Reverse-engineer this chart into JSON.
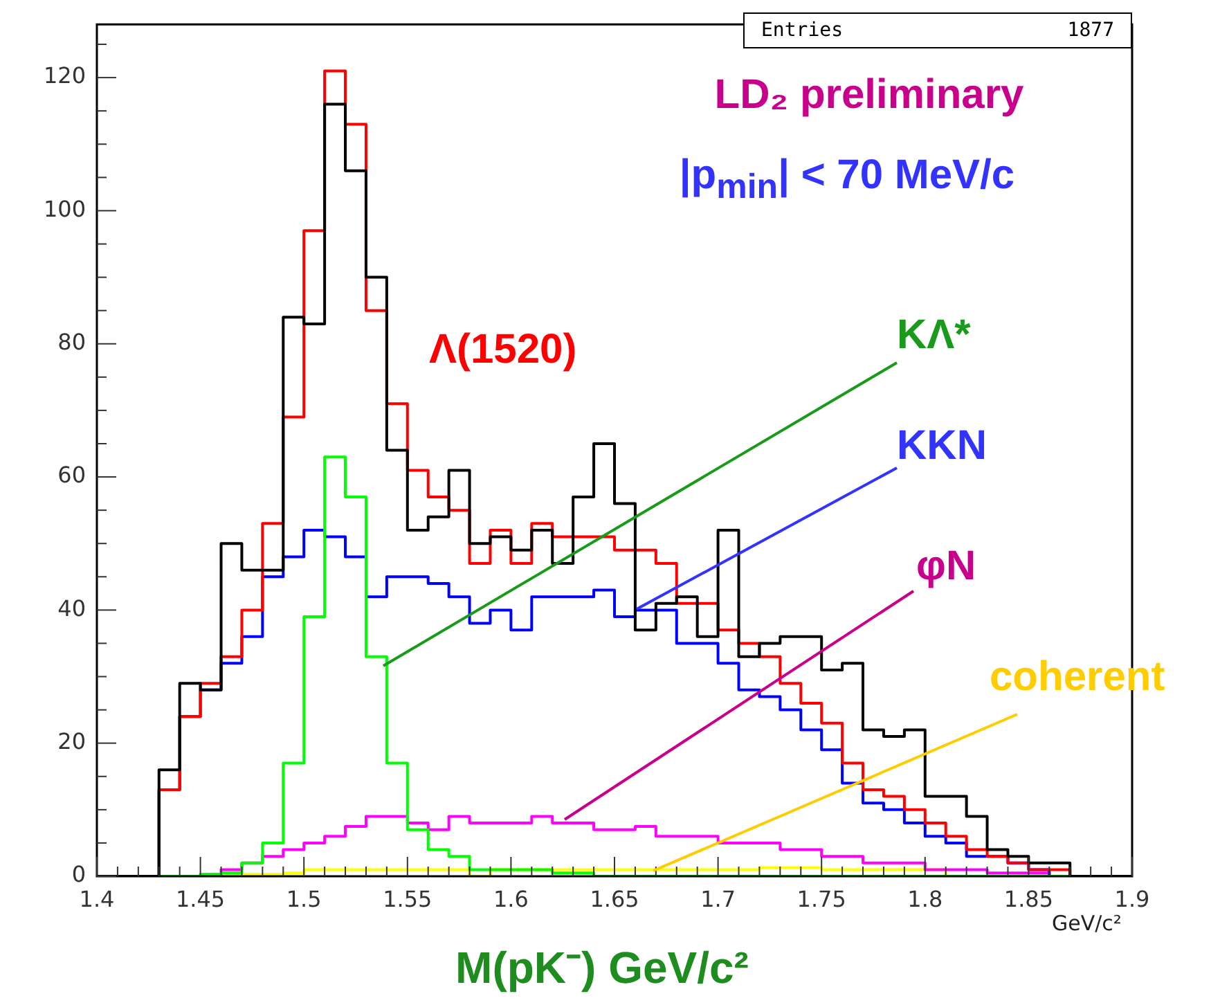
{
  "chart_data": {
    "type": "histogram",
    "title": "LD₂ preliminary",
    "subtitle": "|p$_{min}$| < 70 MeV/c",
    "xlabel": "M(pK⁻) GeV/c²",
    "bins": [
      1.4,
      1.41,
      1.42,
      1.43,
      1.44,
      1.45,
      1.46,
      1.47,
      1.48,
      1.49,
      1.5,
      1.51,
      1.52,
      1.53,
      1.54,
      1.55,
      1.56,
      1.57,
      1.58,
      1.59,
      1.6,
      1.61,
      1.62,
      1.63,
      1.64,
      1.65,
      1.66,
      1.67,
      1.68,
      1.69,
      1.7,
      1.71,
      1.72,
      1.73,
      1.74,
      1.75,
      1.76,
      1.77,
      1.78,
      1.79,
      1.8,
      1.81,
      1.82,
      1.83,
      1.84,
      1.85,
      1.86,
      1.87,
      1.88,
      1.89,
      1.9
    ],
    "series": [
      {
        "color": "#000000",
        "values": [
          0,
          0,
          0,
          16,
          29,
          28,
          50,
          46,
          46,
          84,
          83,
          116,
          106,
          90,
          64,
          52,
          54,
          61,
          50,
          51,
          49,
          52,
          47,
          57,
          65,
          56,
          37,
          41,
          42,
          36,
          52,
          33,
          35,
          36,
          36,
          31,
          32,
          22,
          21,
          22,
          12,
          12,
          9,
          4,
          3,
          2,
          2,
          0,
          0,
          0
        ]
      },
      {
        "color": "#ff0000",
        "values": [
          0,
          0,
          0,
          13,
          24,
          29,
          33,
          40,
          53,
          69,
          97,
          121,
          113,
          85,
          71,
          61,
          57,
          55,
          47,
          52,
          47,
          53,
          51,
          51,
          51,
          49,
          49,
          47,
          41,
          41,
          37,
          35,
          33,
          29,
          26,
          23,
          17,
          13,
          12,
          10,
          8,
          6,
          4,
          3,
          2,
          1,
          1,
          0,
          0,
          0
        ]
      },
      {
        "name": "KΛ*",
        "color": "#00ff00",
        "values": [
          0,
          0,
          0,
          0,
          0,
          0.3,
          0.5,
          2,
          5,
          17,
          39,
          63,
          57,
          33,
          17,
          7,
          4,
          3,
          1,
          1,
          1,
          1,
          0.5,
          0.5,
          0,
          0,
          0,
          0,
          0,
          0,
          0,
          0,
          0,
          0,
          0,
          0,
          0,
          0,
          0,
          0,
          0,
          0,
          0,
          0,
          0,
          0,
          0,
          0,
          0,
          0
        ]
      },
      {
        "name": "KKN",
        "color": "#0000ff",
        "values": [
          0,
          0,
          0,
          13,
          24,
          28,
          32,
          36,
          45,
          48,
          52,
          51,
          48,
          42,
          45,
          45,
          44,
          42,
          38,
          40,
          37,
          42,
          42,
          42,
          43,
          39,
          40,
          40,
          35,
          35,
          32,
          28,
          27,
          25,
          22,
          19,
          14,
          11,
          10,
          8,
          6,
          5,
          3,
          3,
          2,
          1,
          0,
          0,
          0,
          0
        ]
      },
      {
        "name": "φN",
        "color": "#ff00ff",
        "values": [
          0,
          0,
          0,
          0,
          0,
          0,
          1,
          2,
          3,
          4,
          5,
          6,
          7.5,
          9,
          9,
          8,
          7,
          9,
          8,
          8,
          8,
          9,
          8,
          8,
          7,
          7,
          7.5,
          6,
          6,
          6,
          5,
          5,
          5,
          4,
          4,
          3,
          3,
          2,
          2,
          2,
          1,
          1,
          1,
          0.5,
          0.5,
          0.5,
          0,
          0,
          0,
          0
        ]
      },
      {
        "name": "coherent",
        "color": "#ffff00",
        "values": [
          0,
          0,
          0,
          0,
          0,
          0.3,
          0.3,
          0.3,
          0.3,
          0.5,
          1,
          1,
          1,
          1,
          1,
          1,
          1,
          1,
          0,
          1,
          1,
          1,
          1,
          1,
          1,
          1,
          1,
          1,
          1,
          1,
          1,
          1,
          1.3,
          1.3,
          1.3,
          1,
          1,
          1,
          1,
          1,
          1,
          0,
          0,
          0,
          0,
          0,
          0,
          0,
          0,
          0
        ]
      }
    ],
    "xlim": [
      1.4,
      1.9
    ],
    "xticks": [
      1.4,
      {
        "value": 1.41,
        "label": null
      },
      {
        "value": 1.42,
        "label": null
      },
      {
        "value": 1.43,
        "label": null
      },
      {
        "value": 1.44,
        "label": null
      },
      1.45,
      {
        "value": 1.46,
        "label": null
      },
      {
        "value": 1.47,
        "label": null
      },
      {
        "value": 1.48,
        "label": null
      },
      {
        "value": 1.49,
        "label": null
      },
      1.5,
      {
        "value": 1.51,
        "label": null
      },
      {
        "value": 1.52,
        "label": null
      },
      {
        "value": 1.53,
        "label": null
      },
      {
        "value": 1.54,
        "label": null
      },
      1.55,
      {
        "value": 1.56,
        "label": null
      },
      {
        "value": 1.57,
        "label": null
      },
      {
        "value": 1.58,
        "label": null
      },
      {
        "value": 1.59,
        "label": null
      },
      1.6,
      {
        "value": 1.61,
        "label": null
      },
      {
        "value": 1.62,
        "label": null
      },
      {
        "value": 1.63,
        "label": null
      },
      {
        "value": 1.64,
        "label": null
      },
      1.65,
      {
        "value": 1.66,
        "label": null
      },
      {
        "value": 1.67,
        "label": null
      },
      {
        "value": 1.68,
        "label": null
      },
      {
        "value": 1.69,
        "label": null
      },
      1.7,
      {
        "value": 1.71,
        "label": null
      },
      {
        "value": 1.72,
        "label": null
      },
      {
        "value": 1.73,
        "label": null
      },
      {
        "value": 1.74,
        "label": null
      },
      1.75,
      {
        "value": 1.76,
        "label": null
      },
      {
        "value": 1.77,
        "label": null
      },
      {
        "value": 1.78,
        "label": null
      },
      {
        "value": 1.79,
        "label": null
      },
      1.8,
      {
        "value": 1.81,
        "label": null
      },
      {
        "value": 1.82,
        "label": null
      },
      {
        "value": 1.83,
        "label": null
      },
      {
        "value": 1.84,
        "label": null
      },
      1.85,
      {
        "value": 1.86,
        "label": null
      },
      {
        "value": 1.87,
        "label": null
      },
      {
        "value": 1.88,
        "label": null
      },
      {
        "value": 1.89,
        "label": null
      },
      1.9
    ],
    "ylim": [
      0,
      128
    ],
    "yticks": [
      0,
      {
        "value": 5,
        "label": null
      },
      {
        "value": 10,
        "label": null
      },
      {
        "value": 15,
        "label": null
      },
      20,
      {
        "value": 25,
        "label": null
      },
      {
        "value": 30,
        "label": null
      },
      {
        "value": 35,
        "label": null
      },
      40,
      {
        "value": 45,
        "label": null
      },
      {
        "value": 50,
        "label": null
      },
      {
        "value": 55,
        "label": null
      },
      60,
      {
        "value": 65,
        "label": null
      },
      {
        "value": 70,
        "label": null
      },
      {
        "value": 75,
        "label": null
      },
      80,
      {
        "value": 85,
        "label": null
      },
      {
        "value": 90,
        "label": null
      },
      {
        "value": 95,
        "label": null
      },
      100,
      {
        "value": 105,
        "label": null
      },
      {
        "value": 110,
        "label": null
      },
      {
        "value": 115,
        "label": null
      },
      120,
      {
        "value": 125,
        "label": null
      }
    ],
    "annotations": [
      "Λ(1520)",
      "Entries 1877",
      "GeV/c²"
    ],
    "grid": false,
    "legend": false,
    "marker": "none",
    "line_style": "solid"
  }
}
